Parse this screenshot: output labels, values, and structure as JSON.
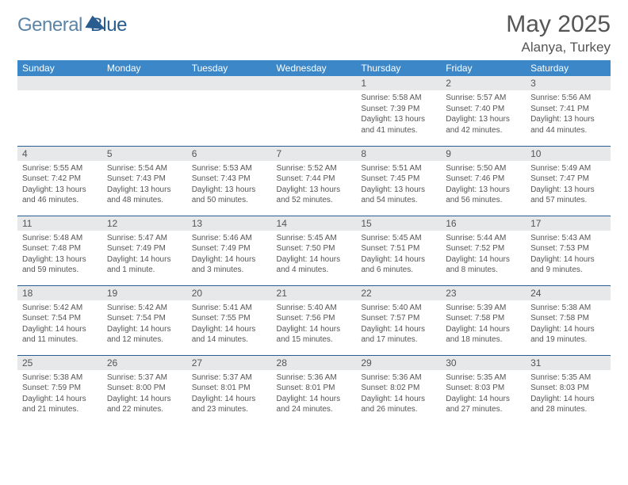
{
  "brand": {
    "text1": "General",
    "text2": "Blue"
  },
  "title": "May 2025",
  "location": "Alanya, Turkey",
  "weekdays": [
    "Sunday",
    "Monday",
    "Tuesday",
    "Wednesday",
    "Thursday",
    "Friday",
    "Saturday"
  ],
  "colors": {
    "header_bg": "#3b87c8",
    "header_text": "#ffffff",
    "daynum_bg": "#e7e8ea",
    "rule": "#2a5d8f",
    "text": "#555555",
    "brand_light": "#5b84a8",
    "brand_dark": "#2a5d8f",
    "background": "#ffffff"
  },
  "typography": {
    "title_fontsize": 30,
    "location_fontsize": 17,
    "weekday_fontsize": 12,
    "daynum_fontsize": 12,
    "body_fontsize": 10
  },
  "layout": {
    "columns": 7,
    "rows": 5,
    "first_weekday_index": 4,
    "days_in_month": 31
  },
  "days": {
    "1": {
      "sunrise": "5:58 AM",
      "sunset": "7:39 PM",
      "daylight": "13 hours and 41 minutes."
    },
    "2": {
      "sunrise": "5:57 AM",
      "sunset": "7:40 PM",
      "daylight": "13 hours and 42 minutes."
    },
    "3": {
      "sunrise": "5:56 AM",
      "sunset": "7:41 PM",
      "daylight": "13 hours and 44 minutes."
    },
    "4": {
      "sunrise": "5:55 AM",
      "sunset": "7:42 PM",
      "daylight": "13 hours and 46 minutes."
    },
    "5": {
      "sunrise": "5:54 AM",
      "sunset": "7:43 PM",
      "daylight": "13 hours and 48 minutes."
    },
    "6": {
      "sunrise": "5:53 AM",
      "sunset": "7:43 PM",
      "daylight": "13 hours and 50 minutes."
    },
    "7": {
      "sunrise": "5:52 AM",
      "sunset": "7:44 PM",
      "daylight": "13 hours and 52 minutes."
    },
    "8": {
      "sunrise": "5:51 AM",
      "sunset": "7:45 PM",
      "daylight": "13 hours and 54 minutes."
    },
    "9": {
      "sunrise": "5:50 AM",
      "sunset": "7:46 PM",
      "daylight": "13 hours and 56 minutes."
    },
    "10": {
      "sunrise": "5:49 AM",
      "sunset": "7:47 PM",
      "daylight": "13 hours and 57 minutes."
    },
    "11": {
      "sunrise": "5:48 AM",
      "sunset": "7:48 PM",
      "daylight": "13 hours and 59 minutes."
    },
    "12": {
      "sunrise": "5:47 AM",
      "sunset": "7:49 PM",
      "daylight": "14 hours and 1 minute."
    },
    "13": {
      "sunrise": "5:46 AM",
      "sunset": "7:49 PM",
      "daylight": "14 hours and 3 minutes."
    },
    "14": {
      "sunrise": "5:45 AM",
      "sunset": "7:50 PM",
      "daylight": "14 hours and 4 minutes."
    },
    "15": {
      "sunrise": "5:45 AM",
      "sunset": "7:51 PM",
      "daylight": "14 hours and 6 minutes."
    },
    "16": {
      "sunrise": "5:44 AM",
      "sunset": "7:52 PM",
      "daylight": "14 hours and 8 minutes."
    },
    "17": {
      "sunrise": "5:43 AM",
      "sunset": "7:53 PM",
      "daylight": "14 hours and 9 minutes."
    },
    "18": {
      "sunrise": "5:42 AM",
      "sunset": "7:54 PM",
      "daylight": "14 hours and 11 minutes."
    },
    "19": {
      "sunrise": "5:42 AM",
      "sunset": "7:54 PM",
      "daylight": "14 hours and 12 minutes."
    },
    "20": {
      "sunrise": "5:41 AM",
      "sunset": "7:55 PM",
      "daylight": "14 hours and 14 minutes."
    },
    "21": {
      "sunrise": "5:40 AM",
      "sunset": "7:56 PM",
      "daylight": "14 hours and 15 minutes."
    },
    "22": {
      "sunrise": "5:40 AM",
      "sunset": "7:57 PM",
      "daylight": "14 hours and 17 minutes."
    },
    "23": {
      "sunrise": "5:39 AM",
      "sunset": "7:58 PM",
      "daylight": "14 hours and 18 minutes."
    },
    "24": {
      "sunrise": "5:38 AM",
      "sunset": "7:58 PM",
      "daylight": "14 hours and 19 minutes."
    },
    "25": {
      "sunrise": "5:38 AM",
      "sunset": "7:59 PM",
      "daylight": "14 hours and 21 minutes."
    },
    "26": {
      "sunrise": "5:37 AM",
      "sunset": "8:00 PM",
      "daylight": "14 hours and 22 minutes."
    },
    "27": {
      "sunrise": "5:37 AM",
      "sunset": "8:01 PM",
      "daylight": "14 hours and 23 minutes."
    },
    "28": {
      "sunrise": "5:36 AM",
      "sunset": "8:01 PM",
      "daylight": "14 hours and 24 minutes."
    },
    "29": {
      "sunrise": "5:36 AM",
      "sunset": "8:02 PM",
      "daylight": "14 hours and 26 minutes."
    },
    "30": {
      "sunrise": "5:35 AM",
      "sunset": "8:03 PM",
      "daylight": "14 hours and 27 minutes."
    },
    "31": {
      "sunrise": "5:35 AM",
      "sunset": "8:03 PM",
      "daylight": "14 hours and 28 minutes."
    }
  },
  "labels": {
    "sunrise": "Sunrise:",
    "sunset": "Sunset:",
    "daylight": "Daylight:"
  }
}
